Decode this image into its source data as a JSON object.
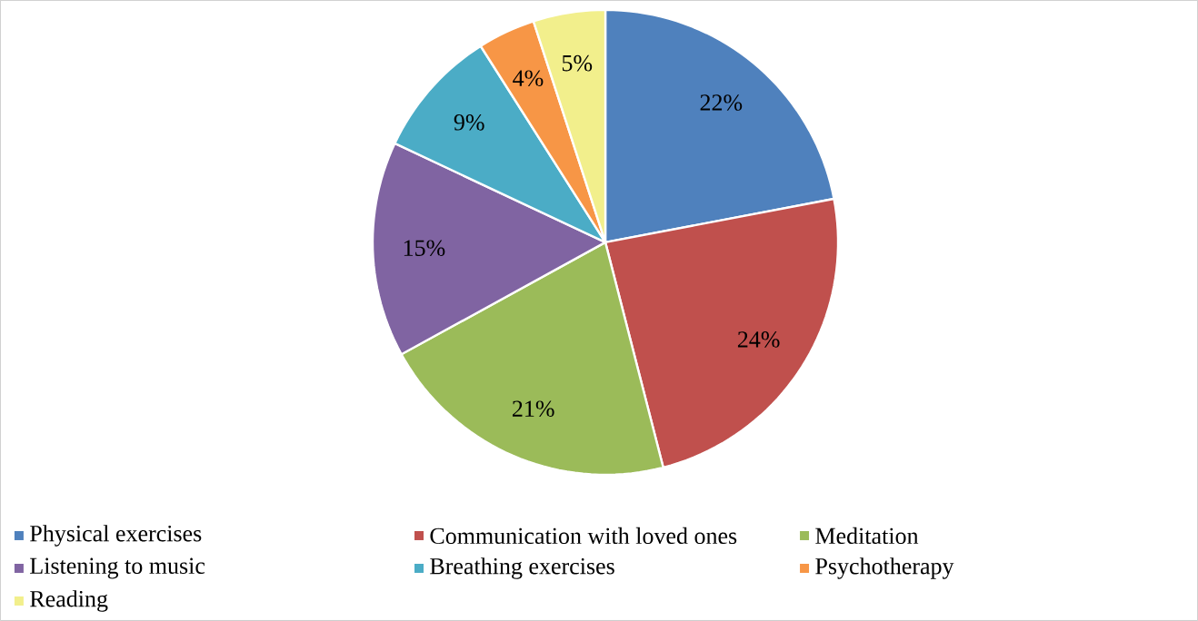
{
  "chart_data": {
    "type": "pie",
    "categories": [
      "Physical exercises",
      "Communication with loved ones",
      "Meditation",
      "Listening to music",
      "Breathing exercises",
      "Psychotherapy",
      "Reading"
    ],
    "values": [
      22,
      24,
      21,
      15,
      9,
      4,
      5
    ],
    "value_labels": [
      "22%",
      "24%",
      "21%",
      "15%",
      "9%",
      "4%",
      "5%"
    ],
    "colors": [
      "#4f81bd",
      "#c0504d",
      "#9bbb59",
      "#8064a2",
      "#4bacc6",
      "#f79646",
      "#f2ef8c"
    ],
    "legend": "bottom"
  }
}
